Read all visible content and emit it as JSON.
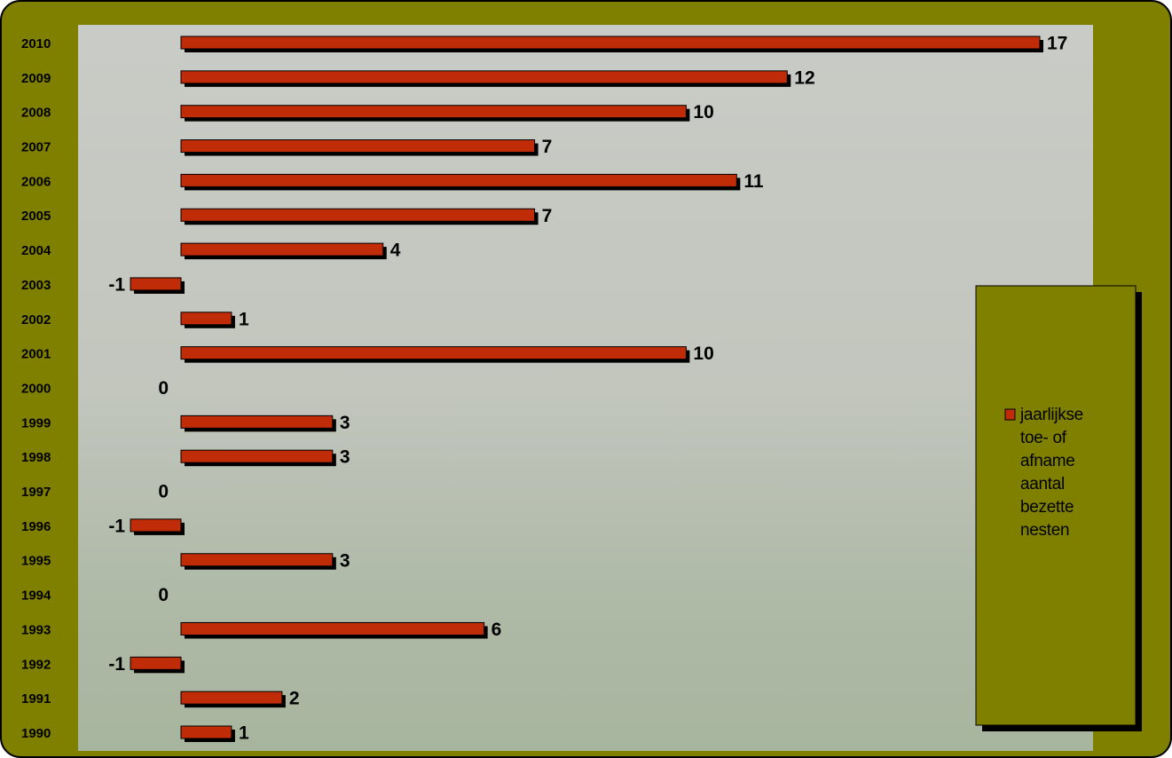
{
  "chart_data": {
    "type": "bar",
    "orientation": "horizontal",
    "categories": [
      "2010",
      "2009",
      "2008",
      "2007",
      "2006",
      "2005",
      "2004",
      "2003",
      "2002",
      "2001",
      "2000",
      "1999",
      "1998",
      "1997",
      "1996",
      "1995",
      "1994",
      "1993",
      "1992",
      "1991",
      "1990"
    ],
    "series": [
      {
        "name": "jaarlijkse toe- of afname aantal bezette nesten",
        "color": "#c02c08",
        "values": [
          17,
          12,
          10,
          7,
          11,
          7,
          4,
          -1,
          1,
          10,
          0,
          3,
          3,
          0,
          -1,
          3,
          0,
          6,
          -1,
          2,
          1
        ]
      }
    ],
    "legend": "right"
  }
}
